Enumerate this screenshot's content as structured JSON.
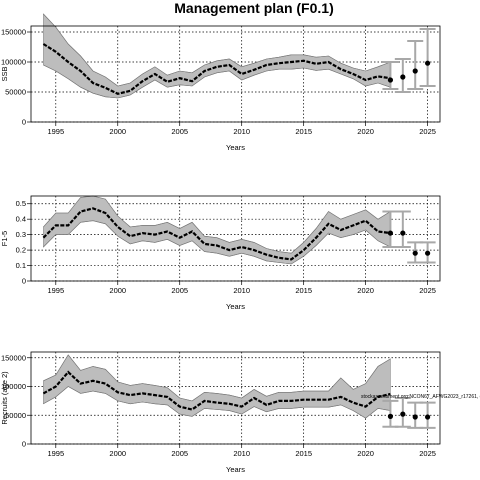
{
  "title": "Management plan (F0.1)",
  "chart_data": [
    {
      "type": "line",
      "panel": "ssb",
      "ylabel": "SSB",
      "xlabel": "Years",
      "xlim": [
        1993,
        2026
      ],
      "ylim": [
        0,
        160000
      ],
      "xticks": [
        1995,
        2000,
        2005,
        2010,
        2015,
        2020,
        2025
      ],
      "yticks": [
        0,
        50000,
        100000,
        150000
      ],
      "grid": true,
      "series": [
        {
          "x": [
            1994,
            1995,
            1996,
            1997,
            1998,
            1999,
            2000,
            2001,
            2002,
            2003,
            2004,
            2005,
            2006,
            2007,
            2008,
            2009,
            2010,
            2011,
            2012,
            2013,
            2014,
            2015,
            2016,
            2017,
            2018,
            2019,
            2020,
            2021,
            2022
          ],
          "values": [
            130000,
            117000,
            100000,
            85000,
            65000,
            57000,
            47000,
            52000,
            68000,
            80000,
            67000,
            73000,
            68000,
            85000,
            92000,
            95000,
            80000,
            87000,
            95000,
            98000,
            100000,
            102000,
            97000,
            100000,
            88000,
            80000,
            70000,
            76000,
            73000
          ],
          "lower": [
            95000,
            85000,
            72000,
            58000,
            48000,
            42000,
            40000,
            45000,
            58000,
            70000,
            58000,
            62000,
            60000,
            75000,
            82000,
            85000,
            70000,
            78000,
            85000,
            88000,
            88000,
            90000,
            86000,
            88000,
            80000,
            72000,
            60000,
            65000,
            58000
          ],
          "upper": [
            180000,
            158000,
            130000,
            110000,
            85000,
            75000,
            60000,
            65000,
            80000,
            92000,
            78000,
            85000,
            82000,
            95000,
            102000,
            105000,
            92000,
            98000,
            105000,
            108000,
            112000,
            112000,
            108000,
            110000,
            98000,
            90000,
            85000,
            92000,
            100000
          ]
        }
      ],
      "projection": {
        "x": [
          2022,
          2023,
          2024,
          2025
        ],
        "values": [
          70000,
          75000,
          85000,
          98000
        ],
        "lower": [
          55000,
          50000,
          55000,
          60000
        ],
        "upper": [
          100000,
          105000,
          135000,
          155000
        ]
      }
    },
    {
      "type": "line",
      "panel": "fbar",
      "ylabel": "F1-5",
      "xlabel": "Years",
      "xlim": [
        1993,
        2026
      ],
      "ylim": [
        0,
        0.55
      ],
      "xticks": [
        1995,
        2000,
        2005,
        2010,
        2015,
        2020,
        2025
      ],
      "yticks": [
        0,
        0.1,
        0.2,
        0.3,
        0.4,
        0.5
      ],
      "grid": true,
      "series": [
        {
          "x": [
            1994,
            1995,
            1996,
            1997,
            1998,
            1999,
            2000,
            2001,
            2002,
            2003,
            2004,
            2005,
            2006,
            2007,
            2008,
            2009,
            2010,
            2011,
            2012,
            2013,
            2014,
            2015,
            2016,
            2017,
            2018,
            2019,
            2020,
            2021,
            2022
          ],
          "values": [
            0.28,
            0.36,
            0.36,
            0.45,
            0.47,
            0.44,
            0.35,
            0.29,
            0.31,
            0.3,
            0.32,
            0.28,
            0.32,
            0.24,
            0.23,
            0.2,
            0.22,
            0.2,
            0.17,
            0.15,
            0.14,
            0.2,
            0.28,
            0.37,
            0.33,
            0.36,
            0.39,
            0.32,
            0.31
          ],
          "lower": [
            0.22,
            0.3,
            0.3,
            0.38,
            0.39,
            0.37,
            0.29,
            0.24,
            0.26,
            0.25,
            0.27,
            0.23,
            0.26,
            0.19,
            0.18,
            0.16,
            0.18,
            0.16,
            0.13,
            0.12,
            0.11,
            0.16,
            0.23,
            0.31,
            0.28,
            0.3,
            0.33,
            0.26,
            0.22
          ],
          "upper": [
            0.35,
            0.44,
            0.44,
            0.54,
            0.55,
            0.53,
            0.42,
            0.35,
            0.36,
            0.36,
            0.38,
            0.34,
            0.38,
            0.29,
            0.28,
            0.25,
            0.27,
            0.25,
            0.21,
            0.19,
            0.18,
            0.25,
            0.34,
            0.45,
            0.4,
            0.43,
            0.46,
            0.4,
            0.45
          ]
        }
      ],
      "projection": {
        "x": [
          2022,
          2023,
          2024,
          2025
        ],
        "values": [
          0.31,
          0.31,
          0.18,
          0.18
        ],
        "lower": [
          0.22,
          0.22,
          0.12,
          0.12
        ],
        "upper": [
          0.45,
          0.45,
          0.25,
          0.25
        ]
      }
    },
    {
      "type": "line",
      "panel": "recruits",
      "ylabel": "Recruits (age 2)",
      "xlabel": "Years",
      "xlim": [
        1993,
        2026
      ],
      "ylim": [
        0,
        160000
      ],
      "xticks": [
        1995,
        2000,
        2005,
        2010,
        2015,
        2020,
        2025
      ],
      "yticks": [
        0,
        50000,
        100000,
        150000
      ],
      "grid": true,
      "annotation": "stockassessment.org:NCON67_AFWG2023_r17261, git:ec2c",
      "series": [
        {
          "x": [
            1994,
            1995,
            1996,
            1997,
            1998,
            1999,
            2000,
            2001,
            2002,
            2003,
            2004,
            2005,
            2006,
            2007,
            2008,
            2009,
            2010,
            2011,
            2012,
            2013,
            2014,
            2015,
            2016,
            2017,
            2018,
            2019,
            2020,
            2021,
            2022
          ],
          "values": [
            88000,
            100000,
            125000,
            105000,
            110000,
            105000,
            90000,
            85000,
            88000,
            85000,
            82000,
            65000,
            60000,
            75000,
            72000,
            70000,
            65000,
            80000,
            68000,
            75000,
            75000,
            77000,
            77000,
            77000,
            82000,
            72000,
            65000,
            82000,
            87000
          ],
          "lower": [
            70000,
            82000,
            100000,
            88000,
            92000,
            88000,
            75000,
            70000,
            73000,
            70000,
            68000,
            52000,
            48000,
            62000,
            60000,
            58000,
            52000,
            65000,
            56000,
            62000,
            62000,
            64000,
            64000,
            64000,
            68000,
            58000,
            45000,
            62000,
            58000
          ],
          "upper": [
            110000,
            120000,
            155000,
            128000,
            135000,
            130000,
            108000,
            102000,
            105000,
            102000,
            98000,
            80000,
            75000,
            90000,
            88000,
            85000,
            80000,
            95000,
            83000,
            90000,
            90000,
            92000,
            92000,
            92000,
            115000,
            95000,
            105000,
            135000,
            148000
          ]
        }
      ],
      "projection": {
        "x": [
          2022,
          2023,
          2024,
          2025
        ],
        "values": [
          48000,
          52000,
          47000,
          47000
        ],
        "lower": [
          30000,
          30000,
          28000,
          28000
        ],
        "upper": [
          75000,
          80000,
          72000,
          72000
        ]
      }
    }
  ]
}
